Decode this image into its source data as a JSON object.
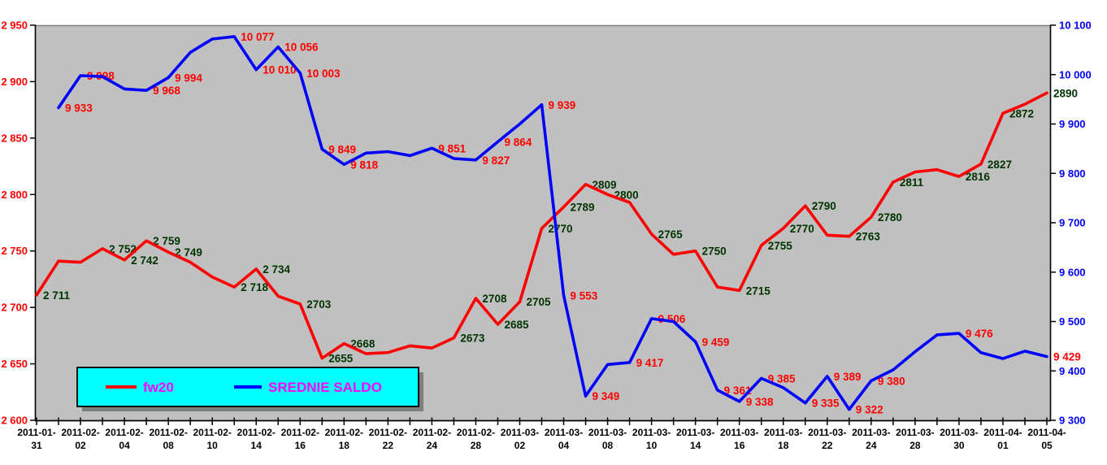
{
  "chart_data": {
    "type": "line",
    "title": "",
    "plot_bg": "#c0c0c0",
    "plot_top_border": "#808080",
    "axis_line_color": "#000000",
    "x_labels": [
      "2011-01-31",
      "2011-02-02",
      "2011-02-04",
      "2011-02-08",
      "2011-02-10",
      "2011-02-14",
      "2011-02-16",
      "2011-02-18",
      "2011-02-22",
      "2011-02-24",
      "2011-02-28",
      "2011-03-02",
      "2011-03-04",
      "2011-03-08",
      "2011-03-10",
      "2011-03-14",
      "2011-03-16",
      "2011-03-18",
      "2011-03-22",
      "2011-03-24",
      "2011-03-28",
      "2011-03-30",
      "2011-04-01",
      "2011-04-05"
    ],
    "x_points": 47,
    "left_axis": {
      "min": 2600,
      "max": 2950,
      "step": 50,
      "label_color": "#ff0000"
    },
    "right_axis": {
      "min": 9300,
      "max": 10100,
      "step": 100,
      "label_color": "#0000ff"
    },
    "series": [
      {
        "name": "fw20",
        "color": "#ff0000",
        "axis": "left",
        "label_color": "#003300",
        "values": [
          2711,
          2741,
          2740,
          2752,
          2742,
          2759,
          2749,
          2740,
          2727,
          2718,
          2734,
          2710,
          2703,
          2655,
          2668,
          2659,
          2660,
          2666,
          2664,
          2673,
          2708,
          2685,
          2705,
          2770,
          2789,
          2809,
          2800,
          2793,
          2765,
          2747,
          2750,
          2718,
          2715,
          2755,
          2770,
          2790,
          2764,
          2763,
          2780,
          2811,
          2820,
          2822,
          2816,
          2827,
          2872,
          2880,
          2890
        ],
        "point_labels": {
          "0": "2 711",
          "3": "2 752",
          "4": "2 742",
          "5": "2 759",
          "6": "2 749",
          "9": "2 718",
          "10": "2 734",
          "12": "2703",
          "13": "2655",
          "14": "2668",
          "19": "2673",
          "20": "2708",
          "21": "2685",
          "22": "2705",
          "23": "2770",
          "24": "2789",
          "25": "2809",
          "26": "2800",
          "28": "2765",
          "30": "2750",
          "32": "2715",
          "33": "2755",
          "34": "2770",
          "35": "2790",
          "37": "2763",
          "38": "2780",
          "39": "2811",
          "42": "2816",
          "43": "2827",
          "44": "2872",
          "46": "2890"
        }
      },
      {
        "name": "SREDNIE SALDO",
        "color": "#0000ff",
        "axis": "right",
        "label_color": "#ff0000",
        "values": [
          null,
          9933,
          9998,
          9996,
          9971,
          9968,
          9994,
          10045,
          10072,
          10077,
          10010,
          10056,
          10003,
          9849,
          9818,
          9841,
          9844,
          9836,
          9851,
          9830,
          9827,
          9864,
          9900,
          9939,
          9553,
          9349,
          9413,
          9417,
          9506,
          9500,
          9459,
          9361,
          9338,
          9385,
          9366,
          9335,
          9389,
          9322,
          9380,
          9402,
          9439,
          9473,
          9476,
          9437,
          9425,
          9440,
          9429
        ],
        "point_labels": {
          "1": "9 933",
          "2": "9 998",
          "5": "9 968",
          "6": "9 994",
          "9": "10 077",
          "10": "10 010",
          "11": "10 056",
          "12": "10 003",
          "13": "9 849",
          "14": "9 818",
          "18": "9 851",
          "20": "9 827",
          "21": "9 864",
          "23": "9 939",
          "24": "9 553",
          "25": "9 349",
          "27": "9 417",
          "28": "9 506",
          "30": "9 459",
          "31": "9 361",
          "32": "9 338",
          "33": "9 385",
          "35": "9 335",
          "36": "9 389",
          "37": "9 322",
          "38": "9 380",
          "42": "9 476",
          "46": "9 429"
        }
      }
    ],
    "legend": {
      "bg": "#00ffff",
      "border": "#000000",
      "shadow": "#7f7f7f",
      "text_color": "#ff00ff",
      "items": [
        {
          "label": "fw20",
          "color": "#ff0000"
        },
        {
          "label": "SREDNIE SALDO",
          "color": "#0000ff"
        }
      ]
    }
  }
}
